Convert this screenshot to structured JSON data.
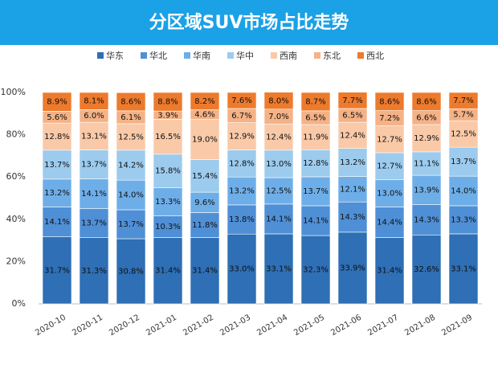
{
  "chart_data": {
    "type": "stacked_bar_100",
    "title": "分区域SUV市场占比走势",
    "categories": [
      "2020-10",
      "2020-11",
      "2020-12",
      "2021-01",
      "2021-02",
      "2021-03",
      "2021-04",
      "2021-05",
      "2021-06",
      "2021-07",
      "2021-08",
      "2021-09"
    ],
    "series": [
      {
        "name": "华东",
        "color": "#2e6fb5",
        "values": [
          31.7,
          31.3,
          30.8,
          31.4,
          31.4,
          33.0,
          33.1,
          32.3,
          33.9,
          31.4,
          32.6,
          33.1
        ],
        "value_labels": [
          "31.7%",
          "31.3%",
          "30.8%",
          "31.4%",
          "31.4%",
          "33.0%",
          "33.1%",
          "32.3%",
          "33.9%",
          "31.4%",
          "32.6%",
          "33.1%"
        ]
      },
      {
        "name": "华北",
        "color": "#4f8fd6",
        "values": [
          14.1,
          13.7,
          13.7,
          10.3,
          11.8,
          13.8,
          14.1,
          14.1,
          14.3,
          14.4,
          14.3,
          13.3
        ],
        "value_labels": [
          "14.1%",
          "13.7%",
          "13.7%",
          "10.3%",
          "11.8%",
          "13.8%",
          "14.1%",
          "14.1%",
          "14.3%",
          "14.4%",
          "14.3%",
          "13.3%"
        ]
      },
      {
        "name": "华南",
        "color": "#6eaee8",
        "values": [
          13.2,
          14.1,
          14.0,
          13.3,
          9.6,
          13.2,
          12.5,
          13.7,
          12.1,
          13.0,
          13.9,
          14.0
        ],
        "value_labels": [
          "13.2%",
          "14.1%",
          "14.0%",
          "13.3%",
          "9.6%",
          "13.2%",
          "12.5%",
          "13.7%",
          "12.1%",
          "13.0%",
          "13.9%",
          "14.0%"
        ]
      },
      {
        "name": "华中",
        "color": "#9ccbee",
        "values": [
          13.7,
          13.7,
          14.2,
          15.8,
          15.4,
          12.8,
          13.0,
          12.8,
          13.2,
          12.7,
          11.1,
          13.7
        ],
        "value_labels": [
          "13.7%",
          "13.7%",
          "14.2%",
          "15.8%",
          "15.4%",
          "12.8%",
          "13.0%",
          "12.8%",
          "13.2%",
          "12.7%",
          "11.1%",
          "13.7%"
        ]
      },
      {
        "name": "西南",
        "color": "#f9c9a8",
        "values": [
          12.8,
          13.1,
          12.5,
          16.5,
          19.0,
          12.9,
          12.4,
          11.9,
          12.4,
          12.7,
          12.9,
          12.5
        ],
        "value_labels": [
          "12.8%",
          "13.1%",
          "12.5%",
          "16.5%",
          "19.0%",
          "12.9%",
          "12.4%",
          "11.9%",
          "12.4%",
          "12.7%",
          "12.9%",
          "12.5%"
        ]
      },
      {
        "name": "东北",
        "color": "#f5b286",
        "values": [
          5.6,
          6.0,
          6.1,
          3.9,
          4.6,
          6.7,
          7.0,
          6.5,
          6.5,
          7.2,
          6.6,
          5.7
        ],
        "value_labels": [
          "5.6%",
          "6.0%",
          "6.1%",
          "3.9%",
          "4.6%",
          "6.7%",
          "7.0%",
          "6.5%",
          "6.5%",
          "7.2%",
          "6.6%",
          "5.7%"
        ]
      },
      {
        "name": "西北",
        "color": "#ee7a2c",
        "values": [
          8.9,
          8.1,
          8.6,
          8.8,
          8.2,
          7.6,
          8.0,
          8.7,
          7.7,
          8.6,
          8.6,
          7.7
        ],
        "value_labels": [
          "8.9%",
          "8.1%",
          "8.6%",
          "8.8%",
          "8.2%",
          "7.6%",
          "8.0%",
          "8.7%",
          "7.7%",
          "8.6%",
          "8.6%",
          "7.7%"
        ]
      }
    ],
    "ylim": [
      0,
      100
    ],
    "yticks": [
      {
        "value": 0,
        "label": "0%"
      },
      {
        "value": 20,
        "label": "20%"
      },
      {
        "value": 40,
        "label": "40%"
      },
      {
        "value": 60,
        "label": "60%"
      },
      {
        "value": 80,
        "label": "80%"
      },
      {
        "value": 100,
        "label": "100%"
      }
    ],
    "grid": false,
    "legend": "top"
  }
}
